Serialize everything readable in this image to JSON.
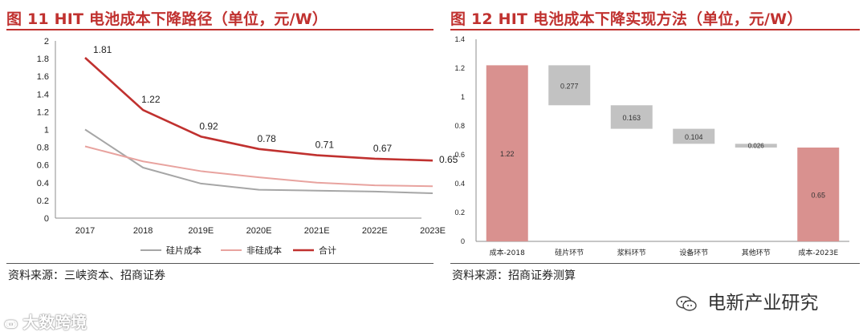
{
  "chart_data": [
    {
      "type": "line",
      "title": "图 11 HIT 电池成本下降路径（单位，元/W）",
      "categories": [
        "2017",
        "2018",
        "2019E",
        "2020E",
        "2021E",
        "2022E",
        "2023E"
      ],
      "ylim": [
        0,
        2
      ],
      "yticks": [
        "0",
        "0.2",
        "0.4",
        "0.6",
        "0.8",
        "1",
        "1.2",
        "1.4",
        "1.6",
        "1.8",
        "2"
      ],
      "grid": false,
      "legend": "bottom",
      "series": [
        {
          "name": "硅片成本",
          "color": "#a6a6a6",
          "values": [
            1.0,
            0.57,
            0.39,
            0.32,
            0.31,
            0.3,
            0.28
          ]
        },
        {
          "name": "非硅成本",
          "color": "#e8a39f",
          "values": [
            0.81,
            0.64,
            0.53,
            0.46,
            0.4,
            0.37,
            0.36
          ]
        },
        {
          "name": "合计",
          "color": "#c0312f",
          "values": [
            1.81,
            1.22,
            0.92,
            0.78,
            0.71,
            0.67,
            0.65
          ],
          "labels": [
            "1.81",
            "1.22",
            "0.92",
            "0.78",
            "0.71",
            "0.67",
            "0.65"
          ]
        }
      ],
      "source": "资料来源：三峡资本、招商证券"
    },
    {
      "type": "bar",
      "subtype": "waterfall",
      "title": "图 12 HIT 电池成本下降实现方法（单位，元/W）",
      "categories": [
        "成本-2018",
        "硅片环节",
        "浆料环节",
        "设备环节",
        "其他环节",
        "成本-2023E"
      ],
      "ylim": [
        0,
        1.4
      ],
      "yticks": [
        "0",
        "0.2",
        "0.4",
        "0.6",
        "0.8",
        "1",
        "1.2",
        "1.4"
      ],
      "grid": false,
      "bars": [
        {
          "kind": "total",
          "base": 0,
          "top": 1.22,
          "label": "1.22"
        },
        {
          "kind": "decrease",
          "base": 0.943,
          "top": 1.22,
          "label": "0.277"
        },
        {
          "kind": "decrease",
          "base": 0.78,
          "top": 0.943,
          "label": "0.163"
        },
        {
          "kind": "decrease",
          "base": 0.676,
          "top": 0.78,
          "label": "0.104"
        },
        {
          "kind": "decrease",
          "base": 0.65,
          "top": 0.676,
          "label": "0.026"
        },
        {
          "kind": "total",
          "base": 0,
          "top": 0.65,
          "label": "0.65"
        }
      ],
      "colors": {
        "total": "#d9918f",
        "decrease": "#c2c2c2"
      },
      "source": "资料来源：招商证券测算"
    }
  ],
  "watermarks": {
    "left": "大数跨境",
    "right": "电新产业研究"
  }
}
